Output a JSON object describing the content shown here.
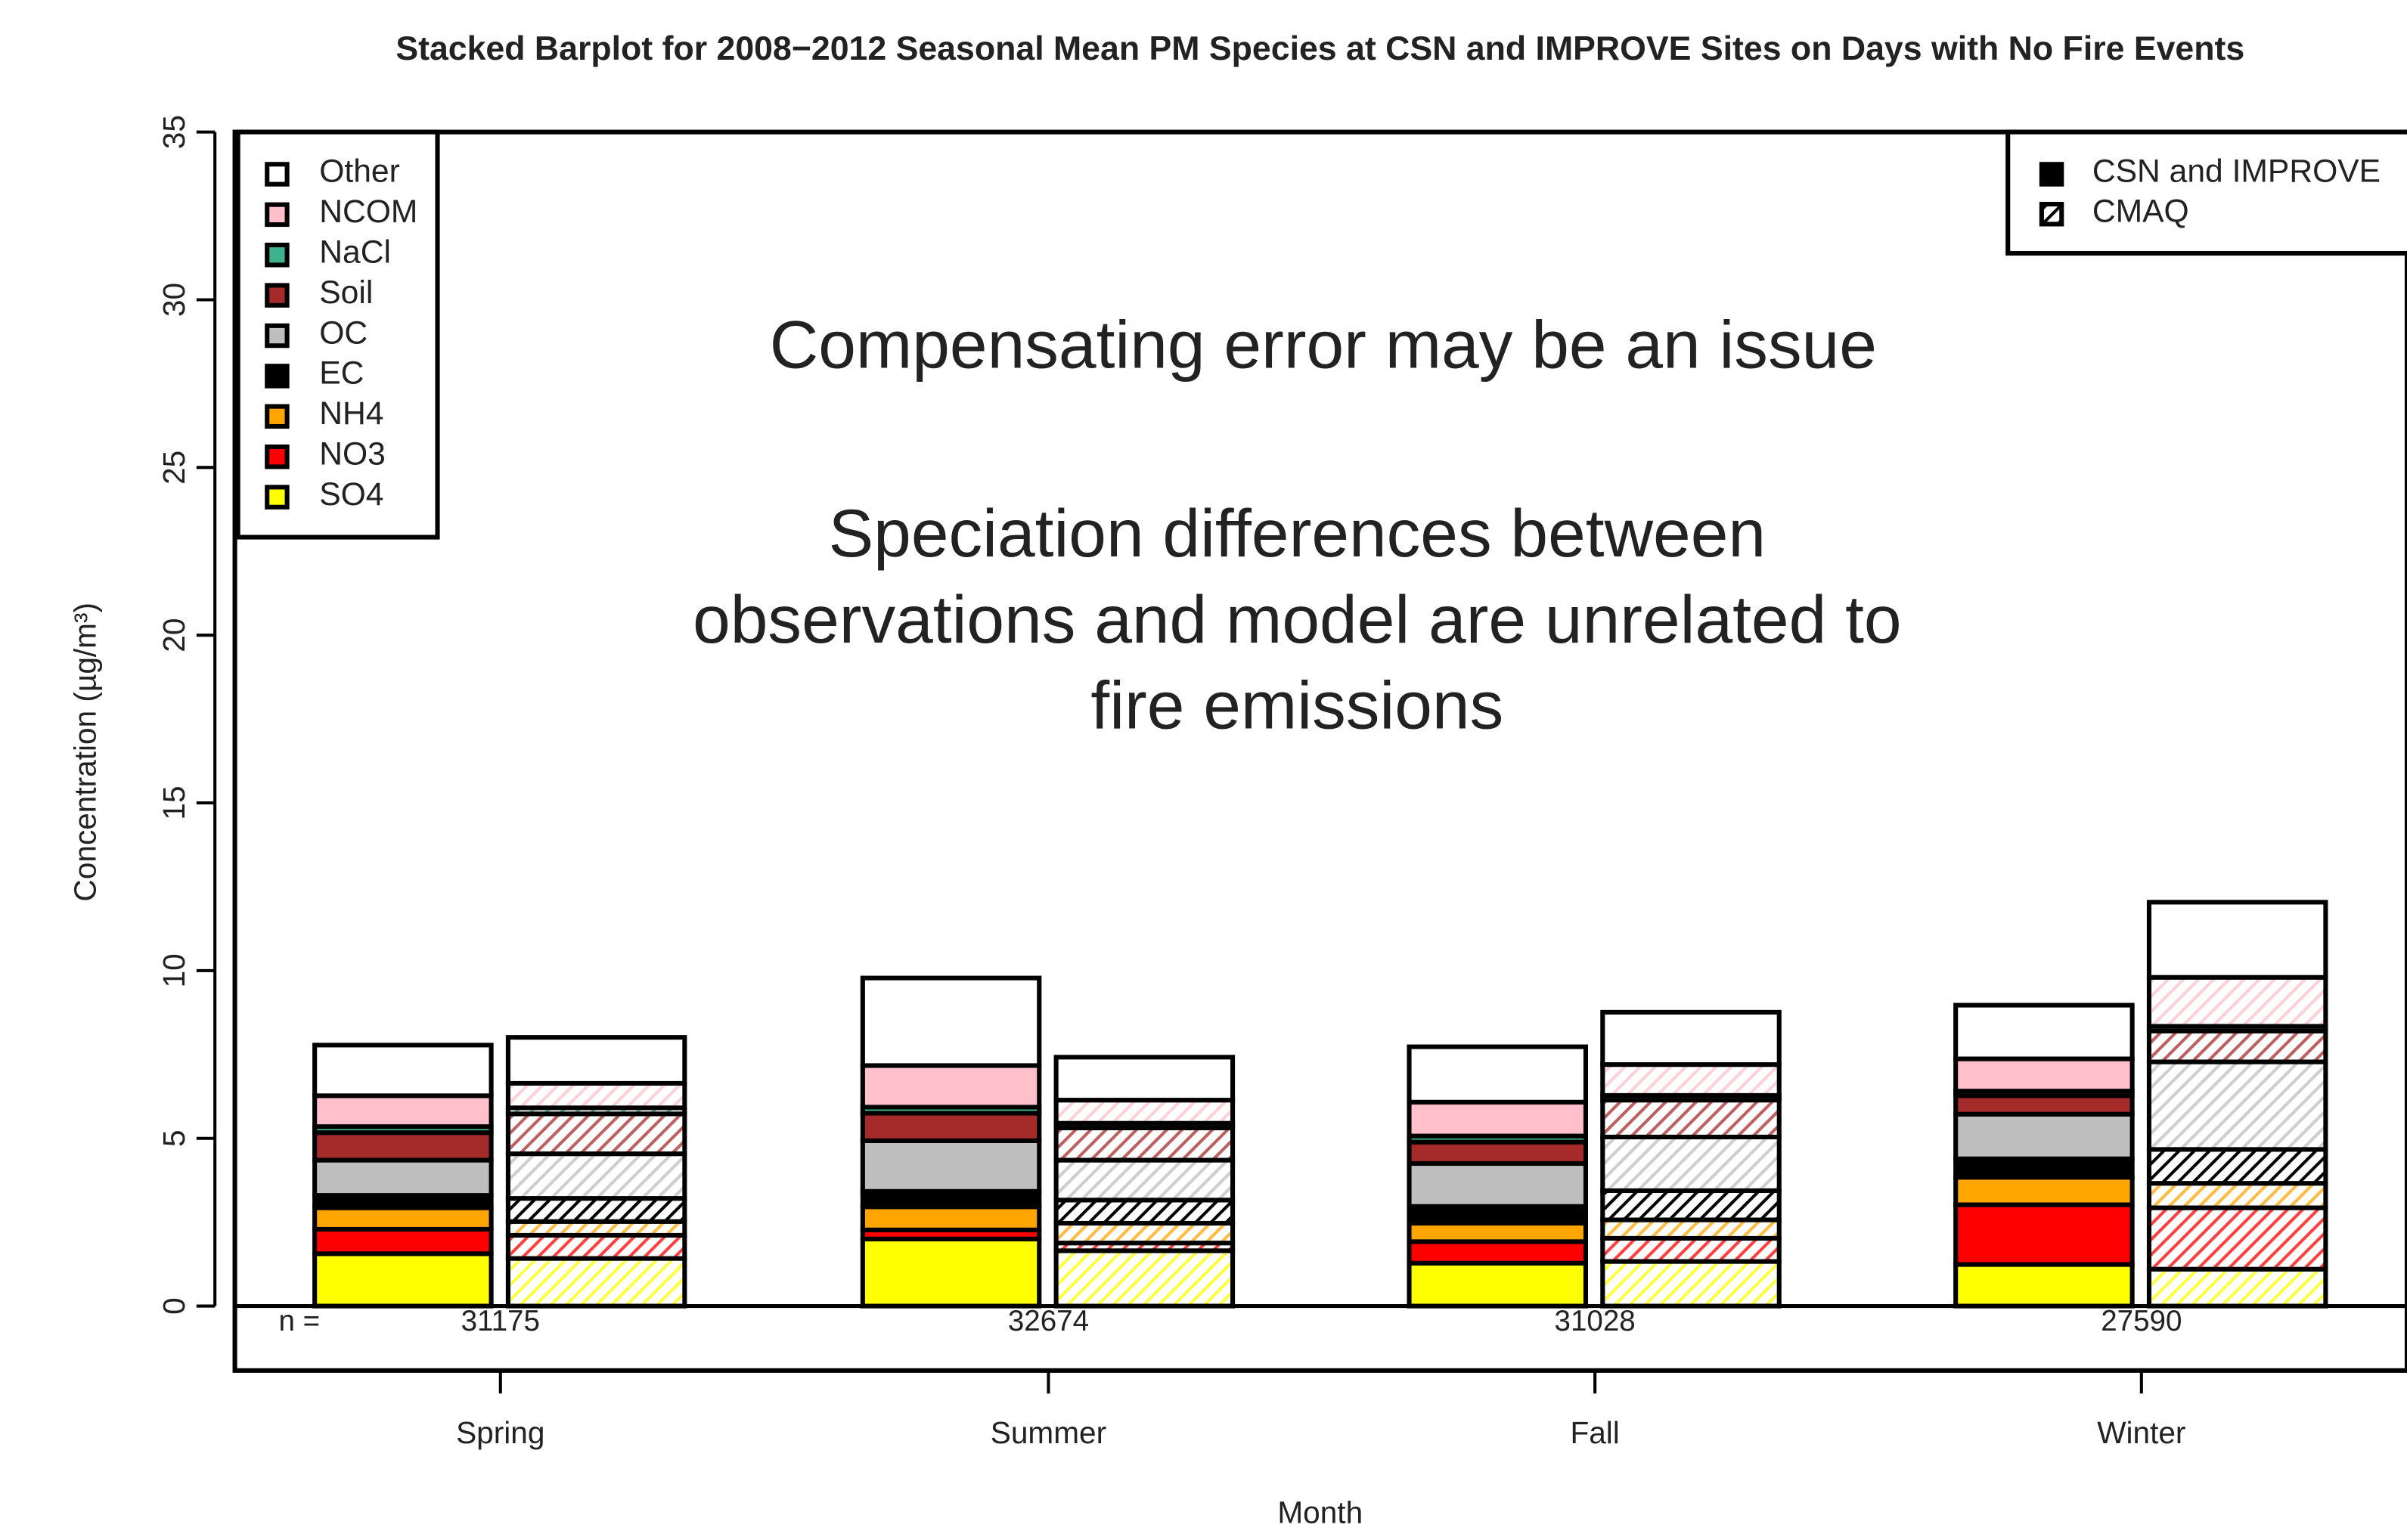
{
  "chart_data": {
    "type": "stacked-bar",
    "title": "Stacked Barplot for 2008−2012 Seasonal Mean PM Species at CSN and IMPROVE Sites on Days with No Fire Events",
    "x_label": "Month",
    "y_label": "Concentration (µg/m³)",
    "categories": [
      "Spring",
      "Summer",
      "Fall",
      "Winter"
    ],
    "ylim": [
      -1.9,
      35
    ],
    "yticks": [
      0,
      5,
      10,
      15,
      20,
      25,
      30,
      35
    ],
    "n_label": "n =",
    "n_values": [
      31175,
      32674,
      31028,
      27590
    ],
    "bar_groups": [
      {
        "name": "CSN and IMPROVE",
        "hatched": false
      },
      {
        "name": "CMAQ",
        "hatched": true
      }
    ],
    "series": [
      {
        "name": "SO4",
        "color": "#ffff00",
        "values": [
          1.56,
          2.0,
          1.28,
          1.24
        ],
        "model_values": [
          1.42,
          1.65,
          1.33,
          1.1
        ]
      },
      {
        "name": "NO3",
        "color": "#ff0000",
        "values": [
          0.73,
          0.27,
          0.64,
          1.78
        ],
        "model_values": [
          0.69,
          0.23,
          0.69,
          1.83
        ]
      },
      {
        "name": "NH4",
        "color": "#ffa500",
        "values": [
          0.64,
          0.69,
          0.55,
          0.82
        ],
        "model_values": [
          0.41,
          0.59,
          0.55,
          0.73
        ]
      },
      {
        "name": "EC",
        "color": "#000000",
        "values": [
          0.37,
          0.46,
          0.5,
          0.55
        ],
        "model_values": [
          0.69,
          0.69,
          0.87,
          1.01
        ]
      },
      {
        "name": "OC",
        "color": "#bebebe",
        "values": [
          1.05,
          1.51,
          1.28,
          1.33
        ],
        "model_values": [
          1.33,
          1.19,
          1.6,
          2.61
        ]
      },
      {
        "name": "Soil",
        "color": "#a52a2a",
        "values": [
          0.82,
          0.82,
          0.64,
          0.55
        ],
        "model_values": [
          1.19,
          0.96,
          1.1,
          0.92
        ]
      },
      {
        "name": "NaCl",
        "color": "#3cb38c",
        "values": [
          0.18,
          0.18,
          0.18,
          0.14
        ],
        "model_values": [
          0.18,
          0.14,
          0.14,
          0.14
        ]
      },
      {
        "name": "NCOM",
        "color": "#ffc0cb",
        "values": [
          0.92,
          1.24,
          1.01,
          0.96
        ],
        "model_values": [
          0.73,
          0.69,
          0.92,
          1.46
        ]
      },
      {
        "name": "Other",
        "color": "#ffffff",
        "values": [
          1.51,
          2.61,
          1.65,
          1.6
        ],
        "model_values": [
          1.37,
          1.28,
          1.56,
          2.24
        ]
      }
    ],
    "annotations": [
      "Compensating error may be an issue",
      "Speciation differences between",
      "observations and model are unrelated to",
      "fire emissions"
    ]
  }
}
